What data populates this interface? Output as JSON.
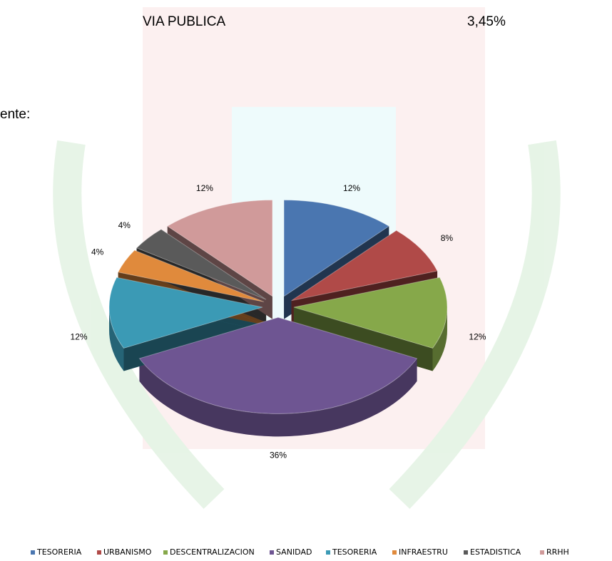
{
  "document": {
    "row": [
      "VIA PUBLICA",
      "3,45%"
    ],
    "fragment": "ente:"
  },
  "chart_data": {
    "type": "pie",
    "categories": [
      "TESORERIA",
      "URBANISMO",
      "DESCENTRALIZACION",
      "SANIDAD",
      "TESORERIA",
      "INFRAESTRU",
      "ESTADISTICA",
      "RRHH"
    ],
    "values": [
      12,
      8,
      12,
      36,
      12,
      4,
      4,
      12
    ],
    "value_labels": [
      "12%",
      "8%",
      "12%",
      "36%",
      "12%",
      "4%",
      "4%",
      "12%"
    ],
    "colors": [
      "#4a76b0",
      "#b04a48",
      "#86a84a",
      "#6e5592",
      "#3b9ab5",
      "#e08a3c",
      "#5a5a5a",
      "#d09a9a"
    ],
    "legend": "bottom"
  }
}
